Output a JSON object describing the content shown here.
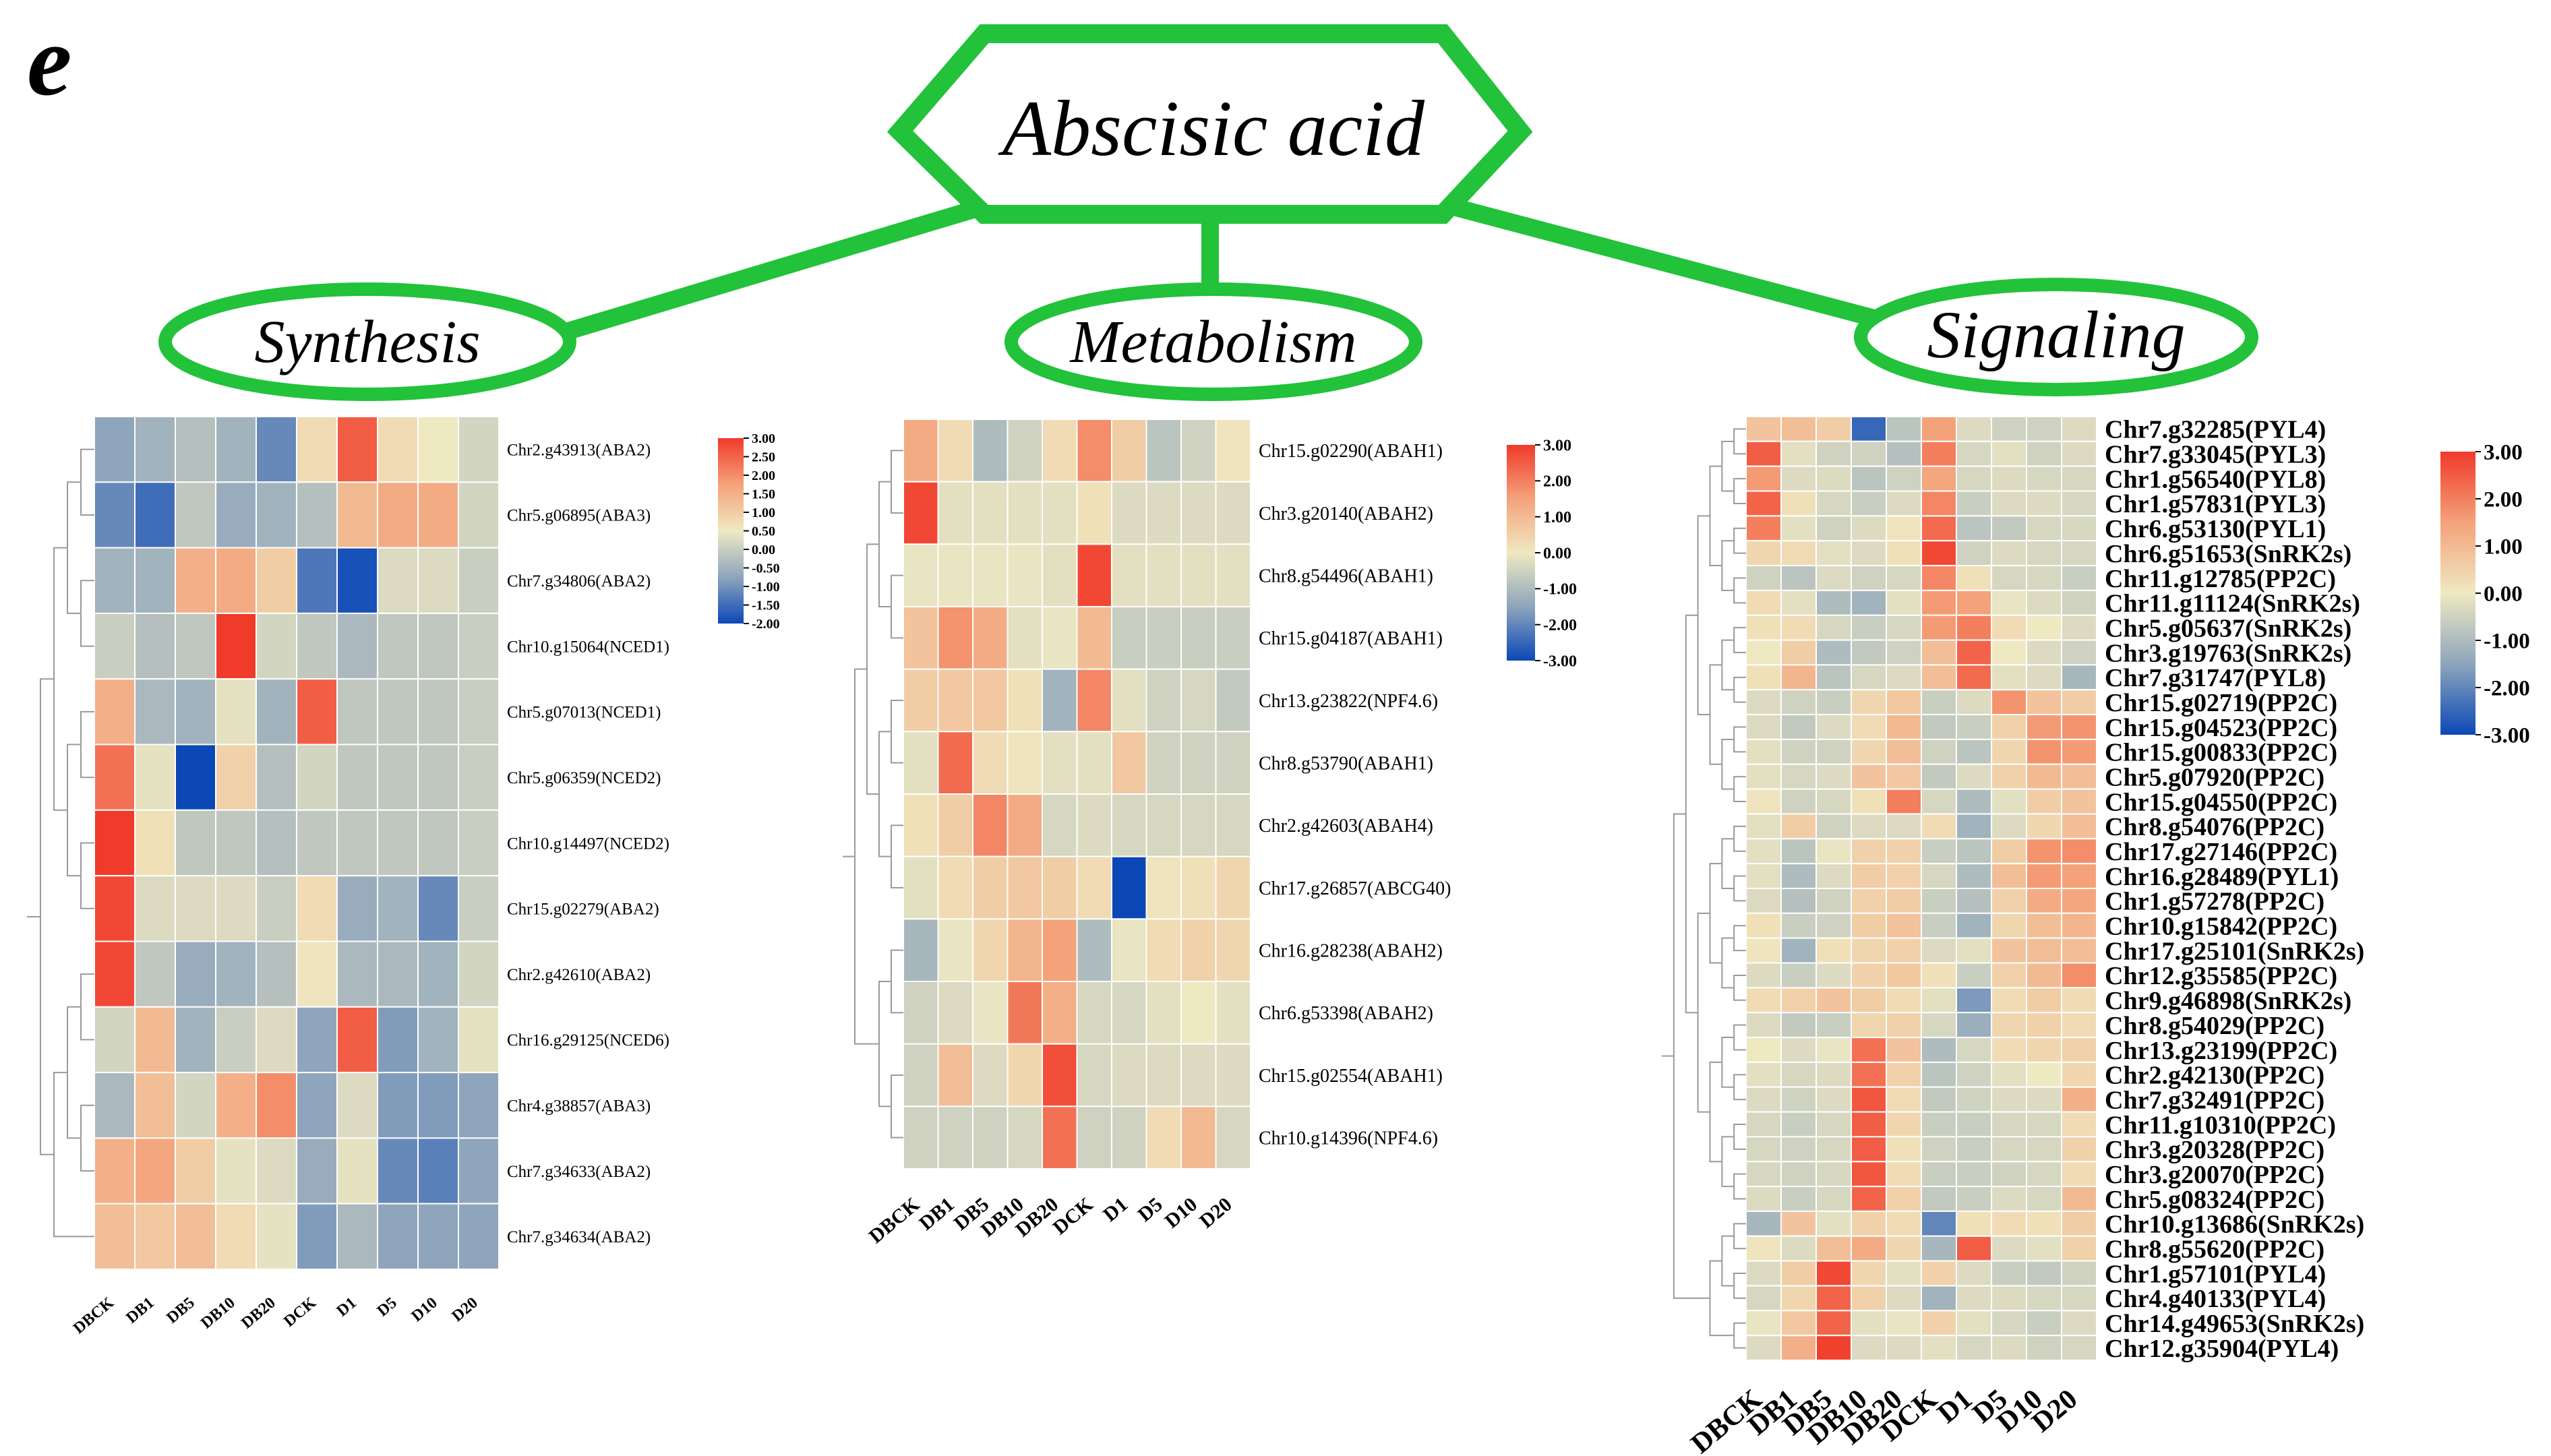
{
  "panel_label": "e",
  "title": "Abscisic acid",
  "colors": {
    "accent": "#22c23a",
    "low": "#0b48b6",
    "mid": "#efe9c2",
    "high": "#f03a2a"
  },
  "chart_data": [
    {
      "type": "heatmap",
      "title": "Synthesis",
      "columns": [
        "DBCK",
        "DB1",
        "DB5",
        "DB10",
        "DB20",
        "DCK",
        "D1",
        "D5",
        "D10",
        "D20"
      ],
      "rows": [
        "Chr2.g43913(ABA2)",
        "Chr5.g06895(ABA3)",
        "Chr7.g34806(ABA2)",
        "Chr10.g15064(NCED1)",
        "Chr5.g07013(NCED1)",
        "Chr5.g06359(NCED2)",
        "Chr10.g14497(NCED2)",
        "Chr15.g02279(ABA2)",
        "Chr2.g42610(ABA2)",
        "Chr16.g29125(NCED6)",
        "Chr4.g38857(ABA3)",
        "Chr7.g34633(ABA2)",
        "Chr7.g34634(ABA2)"
      ],
      "values": [
        [
          -1.0,
          -0.8,
          -0.6,
          -0.8,
          -1.3,
          0.3,
          2.5,
          0.3,
          0.0,
          -0.3
        ],
        [
          -1.3,
          -1.6,
          -0.5,
          -0.9,
          -0.8,
          -0.6,
          1.0,
          1.3,
          1.3,
          -0.3
        ],
        [
          -0.8,
          -0.8,
          1.2,
          1.3,
          0.6,
          -1.5,
          -1.9,
          -0.2,
          -0.2,
          -0.4
        ],
        [
          -0.4,
          -0.6,
          -0.5,
          3.0,
          -0.3,
          -0.5,
          -0.7,
          -0.5,
          -0.5,
          -0.4
        ],
        [
          1.2,
          -0.7,
          -0.8,
          -0.1,
          -0.8,
          2.5,
          -0.5,
          -0.5,
          -0.5,
          -0.4
        ],
        [
          2.2,
          -0.1,
          -2.0,
          0.5,
          -0.6,
          -0.3,
          -0.5,
          -0.5,
          -0.5,
          -0.4
        ],
        [
          3.0,
          0.2,
          -0.5,
          -0.5,
          -0.6,
          -0.5,
          -0.5,
          -0.5,
          -0.5,
          -0.4
        ],
        [
          2.8,
          -0.2,
          -0.2,
          -0.2,
          -0.4,
          0.3,
          -0.9,
          -0.8,
          -1.3,
          -0.4
        ],
        [
          2.8,
          -0.5,
          -0.9,
          -0.8,
          -0.6,
          0.1,
          -0.7,
          -0.7,
          -0.8,
          -0.3
        ],
        [
          -0.3,
          1.0,
          -0.8,
          -0.4,
          -0.2,
          -1.0,
          2.5,
          -1.1,
          -0.8,
          -0.1
        ],
        [
          -0.7,
          0.9,
          -0.3,
          1.2,
          1.8,
          -1.0,
          -0.2,
          -1.1,
          -1.1,
          -1.0
        ],
        [
          1.2,
          1.4,
          0.6,
          -0.1,
          -0.2,
          -0.9,
          -0.1,
          -1.3,
          -1.4,
          -1.0
        ],
        [
          0.9,
          0.7,
          0.9,
          0.3,
          -0.1,
          -1.1,
          -0.7,
          -1.0,
          -1.0,
          -1.0
        ]
      ],
      "legend_ticks": [
        "3.00",
        "2.50",
        "2.00",
        "1.50",
        "1.00",
        "0.50",
        "0.00",
        "-0.50",
        "-1.00",
        "-1.50",
        "-2.00"
      ],
      "vmin": -2.0,
      "vmax": 3.0
    },
    {
      "type": "heatmap",
      "title": "Metabolism",
      "columns": [
        "DBCK",
        "DB1",
        "DB5",
        "DB10",
        "DB20",
        "DCK",
        "D1",
        "D5",
        "D10",
        "D20"
      ],
      "rows": [
        "Chr15.g02290(ABAH1)",
        "Chr3.g20140(ABAH2)",
        "Chr8.g54496(ABAH1)",
        "Chr15.g04187(ABAH1)",
        "Chr13.g23822(NPF4.6)",
        "Chr8.g53790(ABAH1)",
        "Chr2.g42603(ABAH4)",
        "Chr17.g26857(ABCG40)",
        "Chr16.g28238(ABAH2)",
        "Chr6.g53398(ABAH2)",
        "Chr15.g02554(ABAH1)",
        "Chr10.g14396(NPF4.6)"
      ],
      "values": [
        [
          1.3,
          0.3,
          -1.0,
          -0.5,
          0.3,
          1.8,
          0.6,
          -0.8,
          -0.5,
          0.1
        ],
        [
          2.8,
          -0.2,
          -0.2,
          -0.2,
          -0.2,
          0.2,
          -0.3,
          -0.3,
          -0.3,
          -0.3
        ],
        [
          -0.1,
          -0.1,
          -0.1,
          -0.1,
          -0.2,
          2.8,
          -0.2,
          -0.2,
          -0.2,
          -0.2
        ],
        [
          0.8,
          1.7,
          1.3,
          -0.2,
          -0.1,
          1.0,
          -0.6,
          -0.6,
          -0.6,
          -0.6
        ],
        [
          0.6,
          0.7,
          0.7,
          0.2,
          -1.2,
          1.9,
          -0.2,
          -0.5,
          -0.4,
          -0.7
        ],
        [
          -0.2,
          2.3,
          0.3,
          0.1,
          -0.2,
          -0.2,
          0.7,
          -0.5,
          -0.5,
          -0.5
        ],
        [
          0.2,
          0.6,
          1.9,
          1.3,
          -0.4,
          -0.3,
          -0.4,
          -0.4,
          -0.4,
          -0.4
        ],
        [
          -0.2,
          0.3,
          0.6,
          0.7,
          0.6,
          0.3,
          -3.0,
          0.1,
          0.2,
          0.4
        ],
        [
          -1.1,
          -0.1,
          0.4,
          1.1,
          1.5,
          -1.0,
          -0.1,
          0.3,
          0.5,
          0.4
        ],
        [
          -0.5,
          -0.3,
          -0.1,
          2.1,
          1.2,
          -0.4,
          -0.4,
          -0.2,
          0.0,
          -0.2
        ],
        [
          -0.5,
          0.9,
          -0.3,
          0.4,
          2.7,
          -0.4,
          -0.3,
          -0.3,
          -0.3,
          -0.3
        ],
        [
          -0.5,
          -0.5,
          -0.5,
          -0.4,
          2.2,
          -0.5,
          -0.5,
          0.3,
          1.0,
          -0.4
        ]
      ],
      "legend_ticks": [
        "3.00",
        "2.00",
        "1.00",
        "0.00",
        "-1.00",
        "-2.00",
        "-3.00"
      ],
      "vmin": -3.0,
      "vmax": 3.0
    },
    {
      "type": "heatmap",
      "title": "Signaling",
      "columns": [
        "DBCK",
        "DB1",
        "DB5",
        "DB10",
        "DB20",
        "DCK",
        "D1",
        "D5",
        "D10",
        "D20"
      ],
      "rows": [
        "Chr7.g32285(PYL4)",
        "Chr7.g33045(PYL3)",
        "Chr1.g56540(PYL8)",
        "Chr1.g57831(PYL3)",
        "Chr6.g53130(PYL1)",
        "Chr6.g51653(SnRK2s)",
        "Chr11.g12785(PP2C)",
        "Chr11.g11124(SnRK2s)",
        "Chr5.g05637(SnRK2s)",
        "Chr3.g19763(SnRK2s)",
        "Chr7.g31747(PYL8)",
        "Chr15.g02719(PP2C)",
        "Chr15.g04523(PP2C)",
        "Chr15.g00833(PP2C)",
        "Chr5.g07920(PP2C)",
        "Chr15.g04550(PP2C)",
        "Chr8.g54076(PP2C)",
        "Chr17.g27146(PP2C)",
        "Chr16.g28489(PYL1)",
        "Chr1.g57278(PP2C)",
        "Chr10.g15842(PP2C)",
        "Chr17.g25101(SnRK2s)",
        "Chr12.g35585(PP2C)",
        "Chr9.g46898(SnRK2s)",
        "Chr8.g54029(PP2C)",
        "Chr13.g23199(PP2C)",
        "Chr2.g42130(PP2C)",
        "Chr7.g32491(PP2C)",
        "Chr11.g10310(PP2C)",
        "Chr3.g20328(PP2C)",
        "Chr3.g20070(PP2C)",
        "Chr5.g08324(PP2C)",
        "Chr10.g13686(SnRK2s)",
        "Chr8.g55620(PP2C)",
        "Chr1.g57101(PYL4)",
        "Chr4.g40133(PYL4)",
        "Chr14.g49653(SnRK2s)",
        "Chr12.g35904(PYL4)"
      ],
      "values": [
        [
          0.8,
          0.9,
          0.6,
          -2.5,
          -0.8,
          1.5,
          -0.3,
          -0.5,
          -0.5,
          -0.3
        ],
        [
          2.5,
          -0.2,
          -0.5,
          -0.5,
          -0.9,
          2.0,
          -0.4,
          -0.2,
          -0.5,
          -0.3
        ],
        [
          1.6,
          -0.3,
          -0.3,
          -0.8,
          -0.5,
          1.4,
          -0.4,
          -0.3,
          -0.4,
          -0.4
        ],
        [
          2.4,
          0.2,
          -0.4,
          -0.6,
          -0.3,
          1.9,
          -0.6,
          -0.3,
          -0.3,
          -0.4
        ],
        [
          2.0,
          -0.2,
          -0.5,
          -0.3,
          0.1,
          2.3,
          -0.8,
          -0.7,
          -0.4,
          -0.4
        ],
        [
          0.4,
          0.3,
          -0.2,
          -0.3,
          0.2,
          2.8,
          -0.5,
          -0.3,
          -0.4,
          -0.4
        ],
        [
          -0.5,
          -0.8,
          -0.3,
          -0.5,
          -0.4,
          1.9,
          0.2,
          -0.4,
          -0.4,
          -0.6
        ],
        [
          0.3,
          -0.2,
          -1.0,
          -1.2,
          -0.2,
          1.6,
          1.5,
          -0.1,
          -0.3,
          -0.5
        ],
        [
          0.2,
          0.3,
          -0.4,
          -0.6,
          -0.4,
          1.6,
          2.0,
          0.3,
          0.0,
          -0.3
        ],
        [
          0.0,
          0.6,
          -1.0,
          -0.7,
          -0.5,
          0.9,
          2.4,
          0.0,
          -0.3,
          -0.5
        ],
        [
          0.2,
          1.1,
          -0.8,
          -0.4,
          -0.3,
          0.9,
          2.3,
          -0.2,
          -0.3,
          -1.1
        ],
        [
          -0.3,
          -0.5,
          -0.6,
          0.4,
          0.7,
          -0.6,
          -0.3,
          1.7,
          0.8,
          0.6
        ],
        [
          -0.3,
          -0.7,
          -0.3,
          0.3,
          1.0,
          -0.7,
          -0.6,
          0.5,
          1.6,
          1.7
        ],
        [
          -0.2,
          -0.5,
          -0.5,
          0.4,
          0.9,
          -0.5,
          -0.8,
          0.4,
          1.7,
          1.6
        ],
        [
          -0.2,
          -0.4,
          -0.3,
          0.8,
          0.7,
          -0.7,
          -0.3,
          0.5,
          1.0,
          0.9
        ],
        [
          0.1,
          -0.5,
          -0.4,
          0.2,
          2.0,
          -0.4,
          -1.0,
          -0.2,
          0.6,
          0.8
        ],
        [
          -0.2,
          0.6,
          -0.5,
          -0.3,
          -0.3,
          0.3,
          -1.2,
          -0.3,
          0.4,
          0.9
        ],
        [
          -0.2,
          -0.8,
          -0.1,
          0.5,
          0.5,
          -0.6,
          -0.8,
          0.6,
          1.7,
          1.8
        ],
        [
          -0.2,
          -1.0,
          -0.3,
          0.6,
          0.5,
          -0.4,
          -1.0,
          0.9,
          1.6,
          1.5
        ],
        [
          -0.3,
          -0.9,
          -0.5,
          0.5,
          0.6,
          -0.6,
          -0.9,
          0.5,
          1.3,
          1.4
        ],
        [
          0.2,
          -0.6,
          -0.5,
          0.6,
          0.8,
          -0.6,
          -1.2,
          0.4,
          0.9,
          1.1
        ],
        [
          0.1,
          -1.2,
          0.2,
          0.4,
          0.5,
          -0.3,
          -0.2,
          0.8,
          0.9,
          0.9
        ],
        [
          -0.3,
          -0.6,
          -0.3,
          0.5,
          0.7,
          0.2,
          -0.6,
          0.5,
          1.0,
          1.8
        ],
        [
          0.3,
          0.5,
          0.8,
          0.6,
          0.3,
          -0.2,
          -1.7,
          0.3,
          0.6,
          0.3
        ],
        [
          -0.3,
          -0.7,
          -0.6,
          0.4,
          0.5,
          -0.4,
          -1.3,
          0.4,
          0.5,
          0.3
        ],
        [
          0.0,
          -0.3,
          -0.1,
          2.2,
          0.8,
          -1.0,
          -0.4,
          0.3,
          0.4,
          0.5
        ],
        [
          -0.2,
          -0.4,
          -0.3,
          2.2,
          0.5,
          -0.8,
          -0.5,
          -0.2,
          0.0,
          0.4
        ],
        [
          -0.3,
          -0.5,
          -0.3,
          2.6,
          0.3,
          -0.7,
          -0.5,
          -0.3,
          -0.3,
          1.2
        ],
        [
          -0.4,
          -0.6,
          -0.4,
          2.5,
          0.4,
          -0.6,
          -0.6,
          -0.4,
          -0.4,
          0.3
        ],
        [
          -0.4,
          -0.5,
          -0.4,
          2.5,
          0.2,
          -0.5,
          -0.6,
          -0.4,
          -0.4,
          0.5
        ],
        [
          -0.4,
          -0.5,
          -0.4,
          2.6,
          0.3,
          -0.6,
          -0.6,
          -0.5,
          -0.4,
          0.3
        ],
        [
          -0.3,
          -0.6,
          -0.4,
          2.4,
          0.5,
          -0.7,
          -0.6,
          -0.3,
          -0.4,
          1.0
        ],
        [
          -1.1,
          0.8,
          -0.2,
          0.5,
          0.3,
          -2.0,
          0.2,
          0.3,
          0.2,
          0.6
        ],
        [
          0.1,
          -0.3,
          0.9,
          1.3,
          0.4,
          -1.1,
          2.5,
          -0.3,
          -0.2,
          0.5
        ],
        [
          -0.3,
          0.6,
          2.8,
          0.4,
          -0.2,
          0.5,
          -0.3,
          -0.6,
          -0.7,
          -0.5
        ],
        [
          -0.4,
          0.4,
          2.4,
          0.5,
          -0.3,
          -1.2,
          -0.3,
          -0.3,
          -0.4,
          -0.4
        ],
        [
          -0.1,
          0.7,
          2.4,
          -0.2,
          -0.1,
          0.5,
          -0.2,
          -0.4,
          -0.6,
          -0.3
        ],
        [
          -0.3,
          1.2,
          2.9,
          -0.3,
          -0.3,
          -0.2,
          -0.4,
          -0.3,
          -0.5,
          -0.4
        ]
      ],
      "legend_ticks": [
        "3.00",
        "2.00",
        "1.00",
        "0.00",
        "-1.00",
        "-2.00",
        "-3.00"
      ],
      "vmin": -3.0,
      "vmax": 3.0
    }
  ]
}
